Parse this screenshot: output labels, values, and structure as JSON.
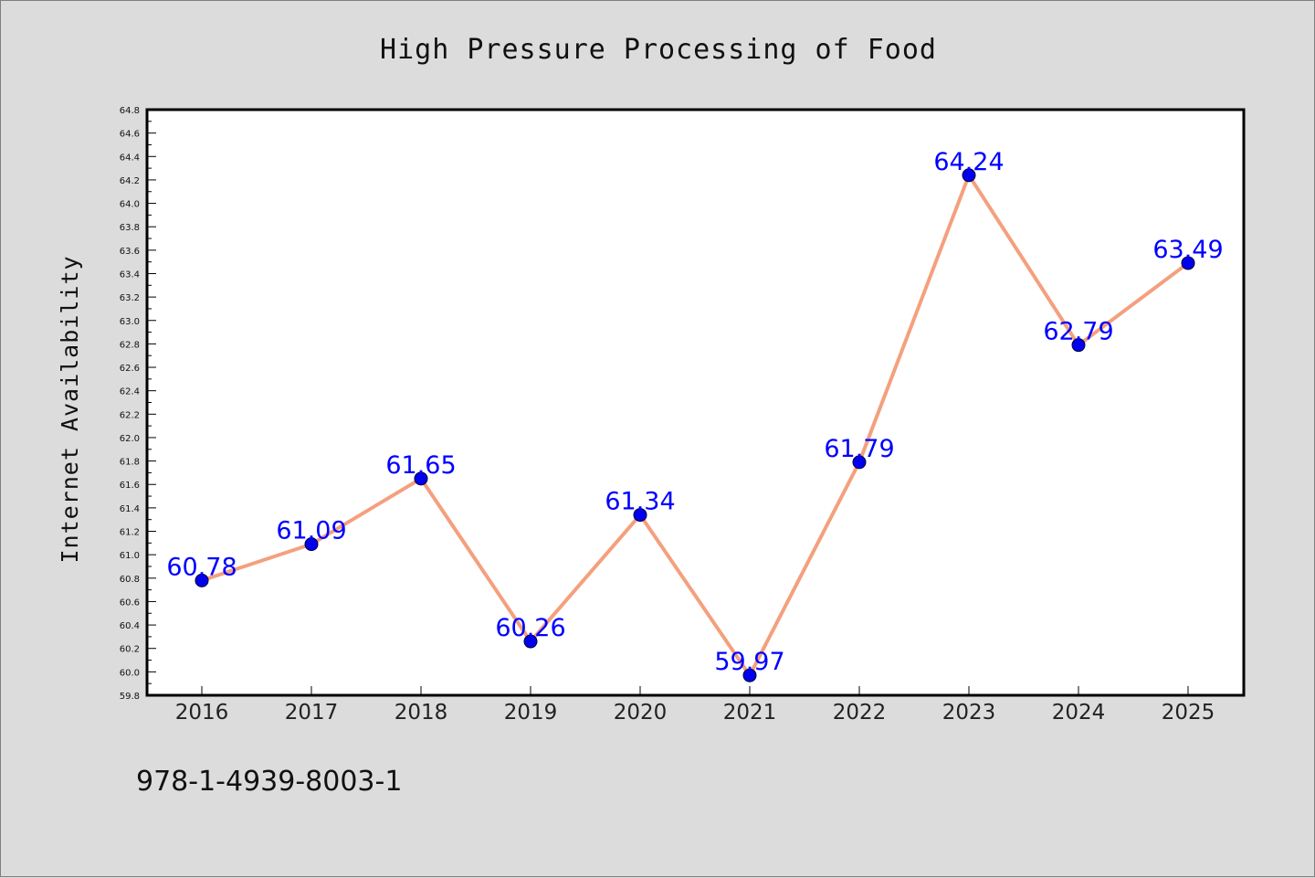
{
  "chart_data": {
    "type": "line",
    "title": "High Pressure Processing of Food",
    "xlabel": "",
    "ylabel": "Internet Availability",
    "categories": [
      "2016",
      "2017",
      "2018",
      "2019",
      "2020",
      "2021",
      "2022",
      "2023",
      "2024",
      "2025"
    ],
    "series": [
      {
        "values": [
          60.78,
          61.09,
          61.65,
          60.26,
          61.34,
          59.97,
          61.79,
          64.24,
          62.79,
          63.49
        ],
        "data_labels": [
          "60.78",
          "61.09",
          "61.65",
          "60.26",
          "61.34",
          "59.97",
          "61.79",
          "64.24",
          "62.79",
          "63.49"
        ]
      }
    ],
    "ylim": [
      59.8,
      64.8
    ],
    "ytick_step": 0.2,
    "yticks": [
      "59.8",
      "60.0",
      "60.2",
      "60.4",
      "60.6",
      "60.8",
      "61.0",
      "61.2",
      "61.4",
      "61.6",
      "61.8",
      "62.0",
      "62.2",
      "62.4",
      "62.6",
      "62.8",
      "63.0",
      "63.2",
      "63.4",
      "63.6",
      "63.8",
      "64.0",
      "64.2",
      "64.4",
      "64.6",
      "64.8"
    ],
    "grid": false,
    "legend": "none",
    "colors": {
      "line": "#f4a07e",
      "marker": "#0000ee",
      "marker_edge": "#000033",
      "label": "#0000ff",
      "plot_background": "#ffffff",
      "figure_background": "#dcdcdc"
    }
  },
  "footer": {
    "isbn": "978-1-4939-8003-1"
  }
}
